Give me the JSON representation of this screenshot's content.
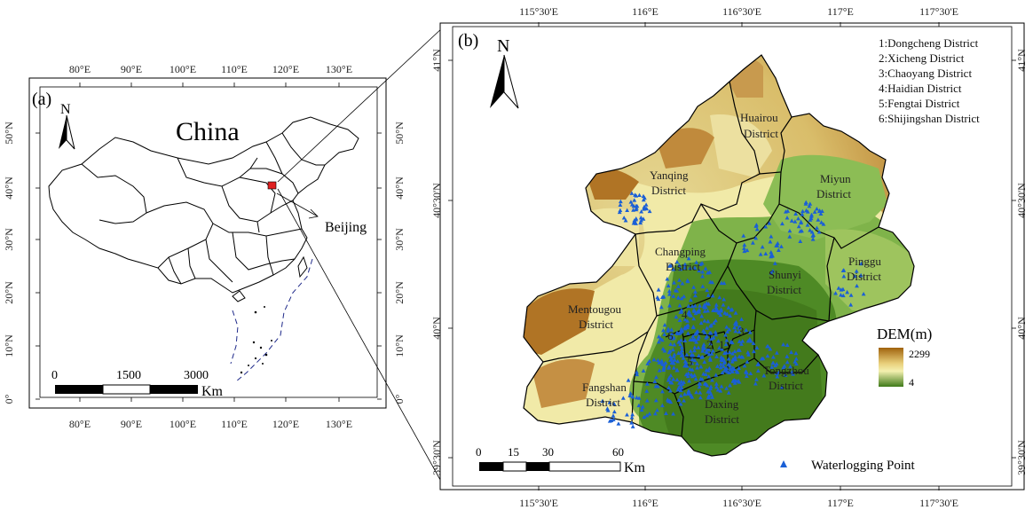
{
  "panel_a": {
    "label": "(a)",
    "north": "N",
    "country": "China",
    "callout": "Beijing",
    "lon_ticks": [
      "80°E",
      "90°E",
      "100°E",
      "110°E",
      "120°E",
      "130°E"
    ],
    "lat_ticks": [
      "50°N",
      "40°N",
      "30°N",
      "20°N",
      "10°N",
      "0°"
    ],
    "scale": {
      "ticks": [
        "0",
        "1500",
        "3000"
      ],
      "unit": "Km"
    }
  },
  "panel_b": {
    "label": "(b)",
    "north": "N",
    "lon_ticks": [
      "115°30'E",
      "116°E",
      "116°30'E",
      "117°E",
      "117°30'E"
    ],
    "lat_ticks": [
      "41°N",
      "40°30'N",
      "40°N",
      "39°30'N"
    ],
    "district_list": [
      "1:Dongcheng District",
      "2:Xicheng District",
      "3:Chaoyang District",
      "4:Haidian District",
      "5:Fengtai District",
      "6:Shijingshan District"
    ],
    "districts": [
      {
        "l1": "Huairou",
        "l2": "District"
      },
      {
        "l1": "Yanqing",
        "l2": "District"
      },
      {
        "l1": "Miyun",
        "l2": "District"
      },
      {
        "l1": "Changping",
        "l2": "District"
      },
      {
        "l1": "Pinggu",
        "l2": "District"
      },
      {
        "l1": "Shunyi",
        "l2": "District"
      },
      {
        "l1": "Mentougou",
        "l2": "District"
      },
      {
        "l1": "Tongzhou",
        "l2": "District"
      },
      {
        "l1": "Fangshan",
        "l2": "District"
      },
      {
        "l1": "Daxing",
        "l2": "District"
      }
    ],
    "numbers": [
      "1",
      "2",
      "3",
      "4",
      "5",
      "6"
    ],
    "legend": {
      "title": "DEM(m)",
      "high": "2299",
      "low": "4",
      "high_color": "#a0620d",
      "mid_color": "#f4f0b0",
      "low_color": "#3f7a1a"
    },
    "point_legend": "Waterlogging Point",
    "point_color": "#1a5fd6",
    "scale": {
      "ticks": [
        "0",
        "15",
        "30",
        "60"
      ],
      "unit": "Km"
    }
  }
}
